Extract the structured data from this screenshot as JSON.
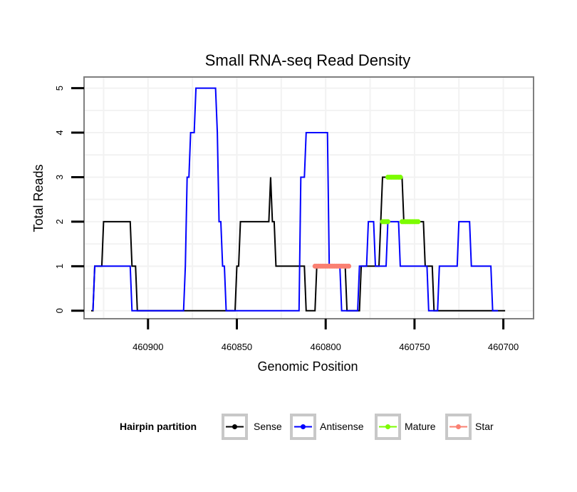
{
  "chart_data": {
    "type": "line",
    "title": "Small RNA-seq Read Density",
    "xlabel": "Genomic Position",
    "ylabel": "Total Reads",
    "x_reversed": true,
    "xlim": [
      460683,
      460936
    ],
    "ylim": [
      -0.18,
      5.25
    ],
    "x_ticks": [
      460900,
      460850,
      460800,
      460750,
      460700
    ],
    "x_tick_labels": [
      "460900",
      "460850",
      "460800",
      "460750",
      "460700"
    ],
    "y_ticks": [
      0,
      1,
      2,
      3,
      4,
      5
    ],
    "y_tick_labels": [
      "0",
      "1",
      "2",
      "3",
      "4",
      "5"
    ],
    "grid": true,
    "legend": {
      "title": "Hairpin partition",
      "position": "bottom",
      "entries": [
        {
          "name": "Sense",
          "color": "#000000"
        },
        {
          "name": "Antisense",
          "color": "#0000ff"
        },
        {
          "name": "Mature",
          "color": "#7cfc00"
        },
        {
          "name": "Star",
          "color": "#fa8072"
        }
      ]
    },
    "series": [
      {
        "name": "Sense",
        "color": "#000000",
        "style": "line",
        "points": [
          [
            460932,
            0
          ],
          [
            460931,
            0
          ],
          [
            460930,
            1
          ],
          [
            460926,
            1
          ],
          [
            460925,
            2
          ],
          [
            460910,
            2
          ],
          [
            460909,
            1
          ],
          [
            460907,
            1
          ],
          [
            460906,
            0
          ],
          [
            460851,
            0
          ],
          [
            460850,
            1
          ],
          [
            460849,
            1
          ],
          [
            460848,
            2
          ],
          [
            460832,
            2
          ],
          [
            460831,
            3
          ],
          [
            460830,
            2
          ],
          [
            460829,
            2
          ],
          [
            460828,
            1
          ],
          [
            460812,
            1
          ],
          [
            460811,
            0
          ],
          [
            460806,
            0
          ],
          [
            460805,
            1
          ],
          [
            460793,
            1
          ],
          [
            460792,
            1
          ],
          [
            460791,
            1
          ],
          [
            460789,
            1
          ],
          [
            460788,
            0
          ],
          [
            460781,
            0
          ],
          [
            460780,
            1
          ],
          [
            460774,
            1
          ],
          [
            460773,
            1
          ],
          [
            460770,
            1
          ],
          [
            460769,
            2
          ],
          [
            460768,
            3
          ],
          [
            460757,
            3
          ],
          [
            460756,
            2
          ],
          [
            460745,
            2
          ],
          [
            460744,
            1
          ],
          [
            460740,
            1
          ],
          [
            460739,
            0
          ],
          [
            460700,
            0
          ],
          [
            460699,
            0
          ]
        ]
      },
      {
        "name": "Antisense",
        "color": "#0000ff",
        "style": "line",
        "points": [
          [
            460931,
            0
          ],
          [
            460930,
            1
          ],
          [
            460910,
            1
          ],
          [
            460909,
            0
          ],
          [
            460880,
            0
          ],
          [
            460879,
            1
          ],
          [
            460878,
            3
          ],
          [
            460877,
            3
          ],
          [
            460876,
            4
          ],
          [
            460874,
            4
          ],
          [
            460873,
            5
          ],
          [
            460862,
            5
          ],
          [
            460861,
            4
          ],
          [
            460860,
            2
          ],
          [
            460859,
            2
          ],
          [
            460858,
            1
          ],
          [
            460857,
            1
          ],
          [
            460856,
            0
          ],
          [
            460815,
            0
          ],
          [
            460814,
            3
          ],
          [
            460812,
            3
          ],
          [
            460811,
            4
          ],
          [
            460799,
            4
          ],
          [
            460798,
            1
          ],
          [
            460792,
            1
          ],
          [
            460791,
            0
          ],
          [
            460782,
            0
          ],
          [
            460781,
            1
          ],
          [
            460777,
            1
          ],
          [
            460776,
            2
          ],
          [
            460773,
            2
          ],
          [
            460772,
            1
          ],
          [
            460766,
            1
          ],
          [
            460765,
            2
          ],
          [
            460759,
            2
          ],
          [
            460758,
            1
          ],
          [
            460743,
            1
          ],
          [
            460742,
            0
          ],
          [
            460737,
            0
          ],
          [
            460736,
            1
          ],
          [
            460726,
            1
          ],
          [
            460725,
            2
          ],
          [
            460719,
            2
          ],
          [
            460718,
            1
          ],
          [
            460707,
            1
          ],
          [
            460706,
            0
          ],
          [
            460703,
            0
          ]
        ]
      },
      {
        "name": "Mature",
        "color": "#7cfc00",
        "style": "dots",
        "segments": [
          {
            "x_from": 460768,
            "x_to": 460765,
            "y": 2
          },
          {
            "x_from": 460765,
            "x_to": 460758,
            "y": 3
          },
          {
            "x_from": 460757,
            "x_to": 460748,
            "y": 2
          }
        ]
      },
      {
        "name": "Star",
        "color": "#fa8072",
        "style": "dots",
        "segments": [
          {
            "x_from": 460806,
            "x_to": 460787,
            "y": 1
          }
        ]
      }
    ]
  }
}
